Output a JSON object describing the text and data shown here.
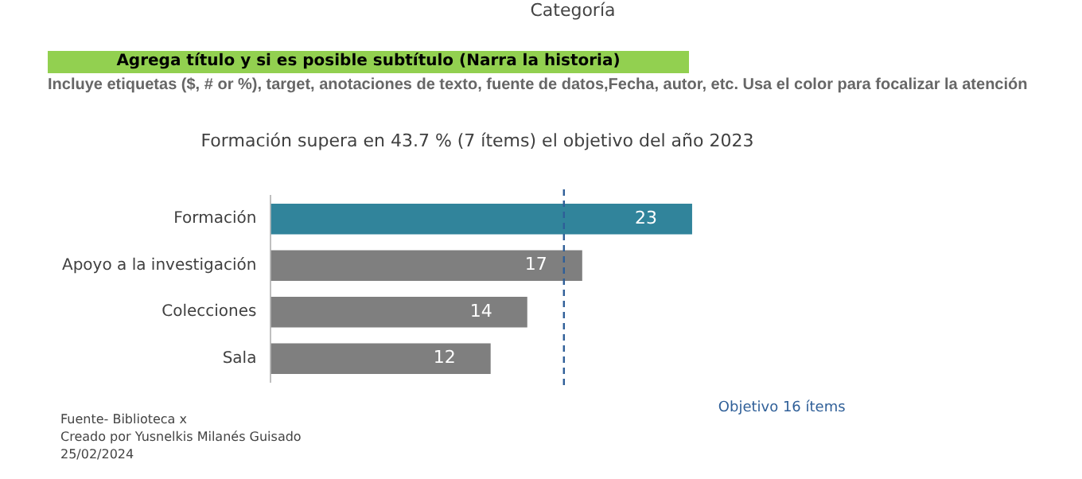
{
  "chart_data": {
    "type": "bar",
    "orientation": "horizontal",
    "title": "Formación supera en 43.7 % (7 ítems) el objetivo del año 2023",
    "categories": [
      "Formación",
      "Apoyo a la investigación",
      "Colecciones",
      "Sala"
    ],
    "values": [
      23,
      17,
      14,
      12
    ],
    "colors": [
      "#31849b",
      "#7f7f7f",
      "#7f7f7f",
      "#7f7f7f"
    ],
    "data_labels": true,
    "grid": false,
    "legend": false,
    "tick_labels": "y",
    "ref_lines": [
      {
        "axis": "x",
        "value": 16,
        "label": "Objetivo 16 ítems",
        "color": "#2f5f98",
        "line_style": "dashed"
      }
    ],
    "annotations": [
      "Categoría",
      "Agrega título y si es posible subtítulo (Narra la historia)",
      "Incluye etiquetas ($, # or %), target, anotaciones de texto, fuente de datos,Fecha, autor, etc. Usa el color para focalizar la atención",
      "Fuente- Biblioteca x",
      "Creado por Yusnelkis Milanés Guisado",
      "25/02/2024"
    ]
  }
}
